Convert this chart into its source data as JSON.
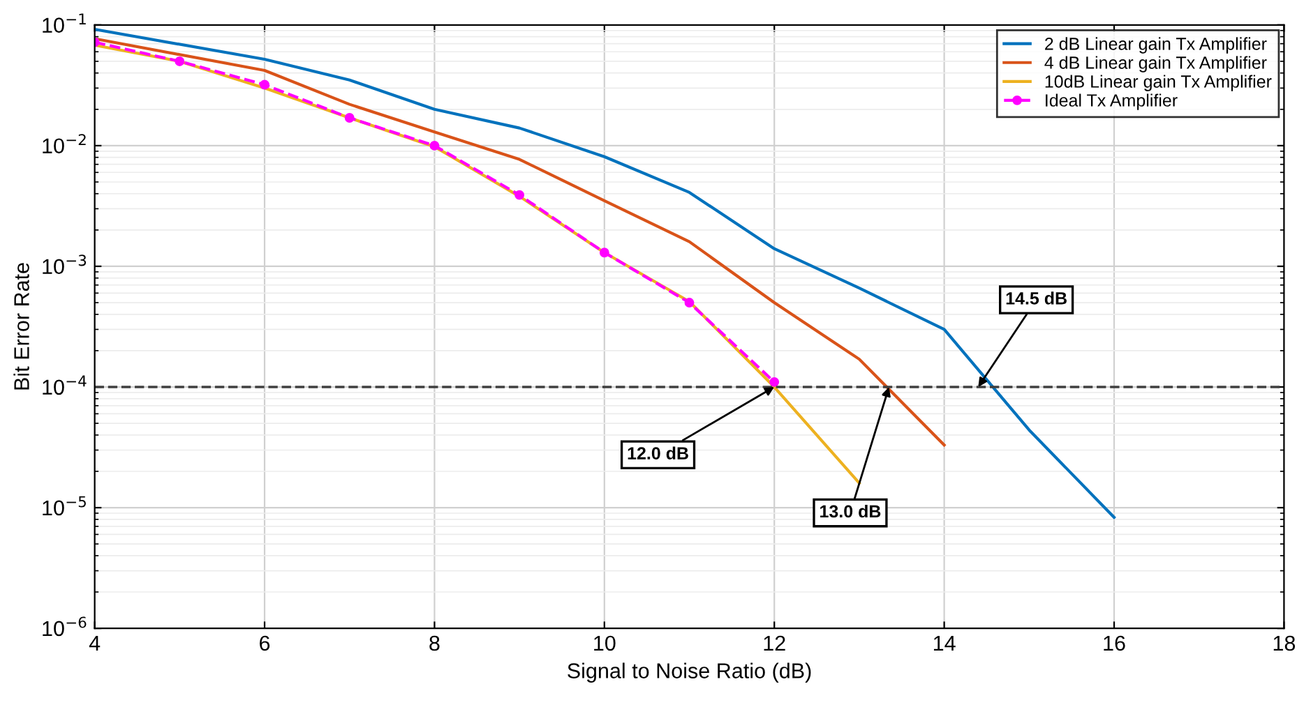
{
  "chart_data": {
    "type": "line",
    "xlabel": "Signal to Noise Ratio (dB)",
    "ylabel": "Bit Error Rate",
    "log": "y",
    "grid": true,
    "legend": "top right",
    "xlim": [
      4,
      18
    ],
    "xticks": [
      4,
      6,
      8,
      10,
      12,
      14,
      16,
      18
    ],
    "ylim": [
      1e-06,
      0.1
    ],
    "yticks": [
      {
        "value": 1e-06,
        "label": "10$^{−6}$"
      },
      {
        "value": 1e-05,
        "label": "10$^{−5}$"
      },
      {
        "value": 0.0001,
        "label": "10$^{−4}$"
      },
      {
        "value": 0.001,
        "label": "10$^{−3}$"
      },
      {
        "value": 0.01,
        "label": "10$^{−2}$"
      },
      {
        "value": 0.1,
        "label": "10$^{−1}$"
      }
    ],
    "series": [
      {
        "name": "2 dB Linear gain Tx Amplifier",
        "color": "#0072bd",
        "x": [
          4,
          6,
          7,
          8,
          9,
          10,
          11,
          12,
          13,
          14,
          15,
          16
        ],
        "values": [
          0.092,
          0.052,
          0.035,
          0.02,
          0.014,
          0.0081,
          0.0041,
          0.0014,
          0.00066,
          0.0003,
          4.4e-05,
          8.3e-06
        ]
      },
      {
        "name": "4 dB Linear gain Tx Amplifier",
        "color": "#d95319",
        "x": [
          4,
          6,
          7,
          8,
          9,
          10,
          11,
          12,
          13,
          14
        ],
        "values": [
          0.077,
          0.042,
          0.022,
          0.013,
          0.0077,
          0.0035,
          0.0016,
          0.0005,
          0.00017,
          3.3e-05
        ]
      },
      {
        "name": "10dB Linear gain Tx Amplifier",
        "color": "#edb120",
        "x": [
          4,
          5,
          6,
          7,
          8,
          9,
          10,
          11,
          12,
          13
        ],
        "values": [
          0.068,
          0.05,
          0.03,
          0.017,
          0.0098,
          0.0038,
          0.0013,
          0.00051,
          0.0001,
          1.6e-05
        ]
      },
      {
        "name": "Ideal Tx Amplifier",
        "color": "#ff00ff",
        "marker": "circle",
        "line_style": "dashed",
        "x": [
          4,
          5,
          6,
          7,
          8,
          9,
          10,
          11,
          12
        ],
        "values": [
          0.072,
          0.05,
          0.032,
          0.017,
          0.01,
          0.0039,
          0.0013,
          0.0005,
          0.00011
        ]
      }
    ],
    "ref_lines": [
      {
        "axis": "y",
        "value": 0.0001,
        "color": "#404040",
        "line_style": "dashed"
      }
    ],
    "annotations": [
      {
        "text": "12.0 dB",
        "x": 12,
        "y": 0.0001
      },
      {
        "text": "13.0 dB",
        "x": 13.35,
        "y": 0.0001
      },
      {
        "text": "14.5 dB",
        "x": 14.4,
        "y": 0.0001
      }
    ]
  }
}
